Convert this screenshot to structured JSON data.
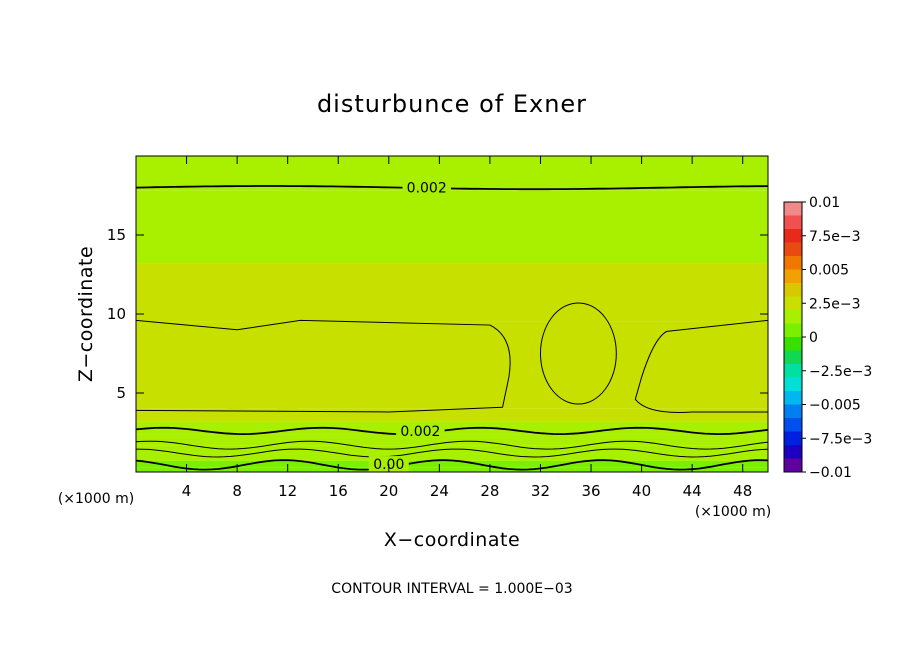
{
  "chart_data": {
    "type": "heatmap",
    "title": "disturbunce of Exner",
    "xlabel": "X−coordinate",
    "ylabel": "Z−coordinate",
    "x_unit": "(×1000 m)",
    "y_unit": "(×1000 m)",
    "xlim": [
      0,
      50
    ],
    "ylim": [
      0,
      20
    ],
    "x_ticks": [
      4,
      8,
      12,
      16,
      20,
      24,
      28,
      32,
      36,
      40,
      44,
      48
    ],
    "y_ticks": [
      5,
      10,
      15
    ],
    "colorbar": {
      "range": [
        -0.01,
        0.01
      ],
      "tick_values": [
        0.01,
        0.0075,
        0.005,
        0.0025,
        0,
        -0.0025,
        -0.005,
        -0.0075,
        -0.01
      ],
      "tick_labels": [
        "0.01",
        "7.5e−3",
        "0.005",
        "2.5e−3",
        "0",
        "−2.5e−3",
        "−0.005",
        "−7.5e−3",
        "−0.01"
      ],
      "colors": [
        "#f08a8a",
        "#f05050",
        "#e82a1a",
        "#e84a10",
        "#f07800",
        "#f0a000",
        "#d8c800",
        "#c8e000",
        "#a8f000",
        "#7af000",
        "#38e000",
        "#10d850",
        "#00e0a0",
        "#00e0d8",
        "#00b8f0",
        "#0080f0",
        "#0050f0",
        "#0020e0",
        "#2000c0",
        "#6000a0"
      ]
    },
    "contour_labels": [
      {
        "text": "0.002",
        "x": 23,
        "z": 18.0
      },
      {
        "text": "0.002",
        "x": 22.5,
        "z": 2.6
      },
      {
        "text": "0.00",
        "x": 20,
        "z": 0.5
      }
    ],
    "fields": {
      "z_levels": [
        0,
        0.3,
        0.7,
        1.2,
        1.7,
        2.4,
        3.2,
        4.0,
        9.5,
        13.2,
        17.8,
        20
      ],
      "level_values": [
        0.0005,
        0.0008,
        0.0012,
        0.0015,
        0.0018,
        0.002,
        0.0023,
        0.0026,
        0.0022,
        0.002,
        0.0018,
        0.0017
      ],
      "bubble_center": [
        35,
        7.5
      ],
      "bubble_value": 0.0027
    },
    "contour_interval_text": "CONTOUR INTERVAL = 1.000E−03"
  }
}
